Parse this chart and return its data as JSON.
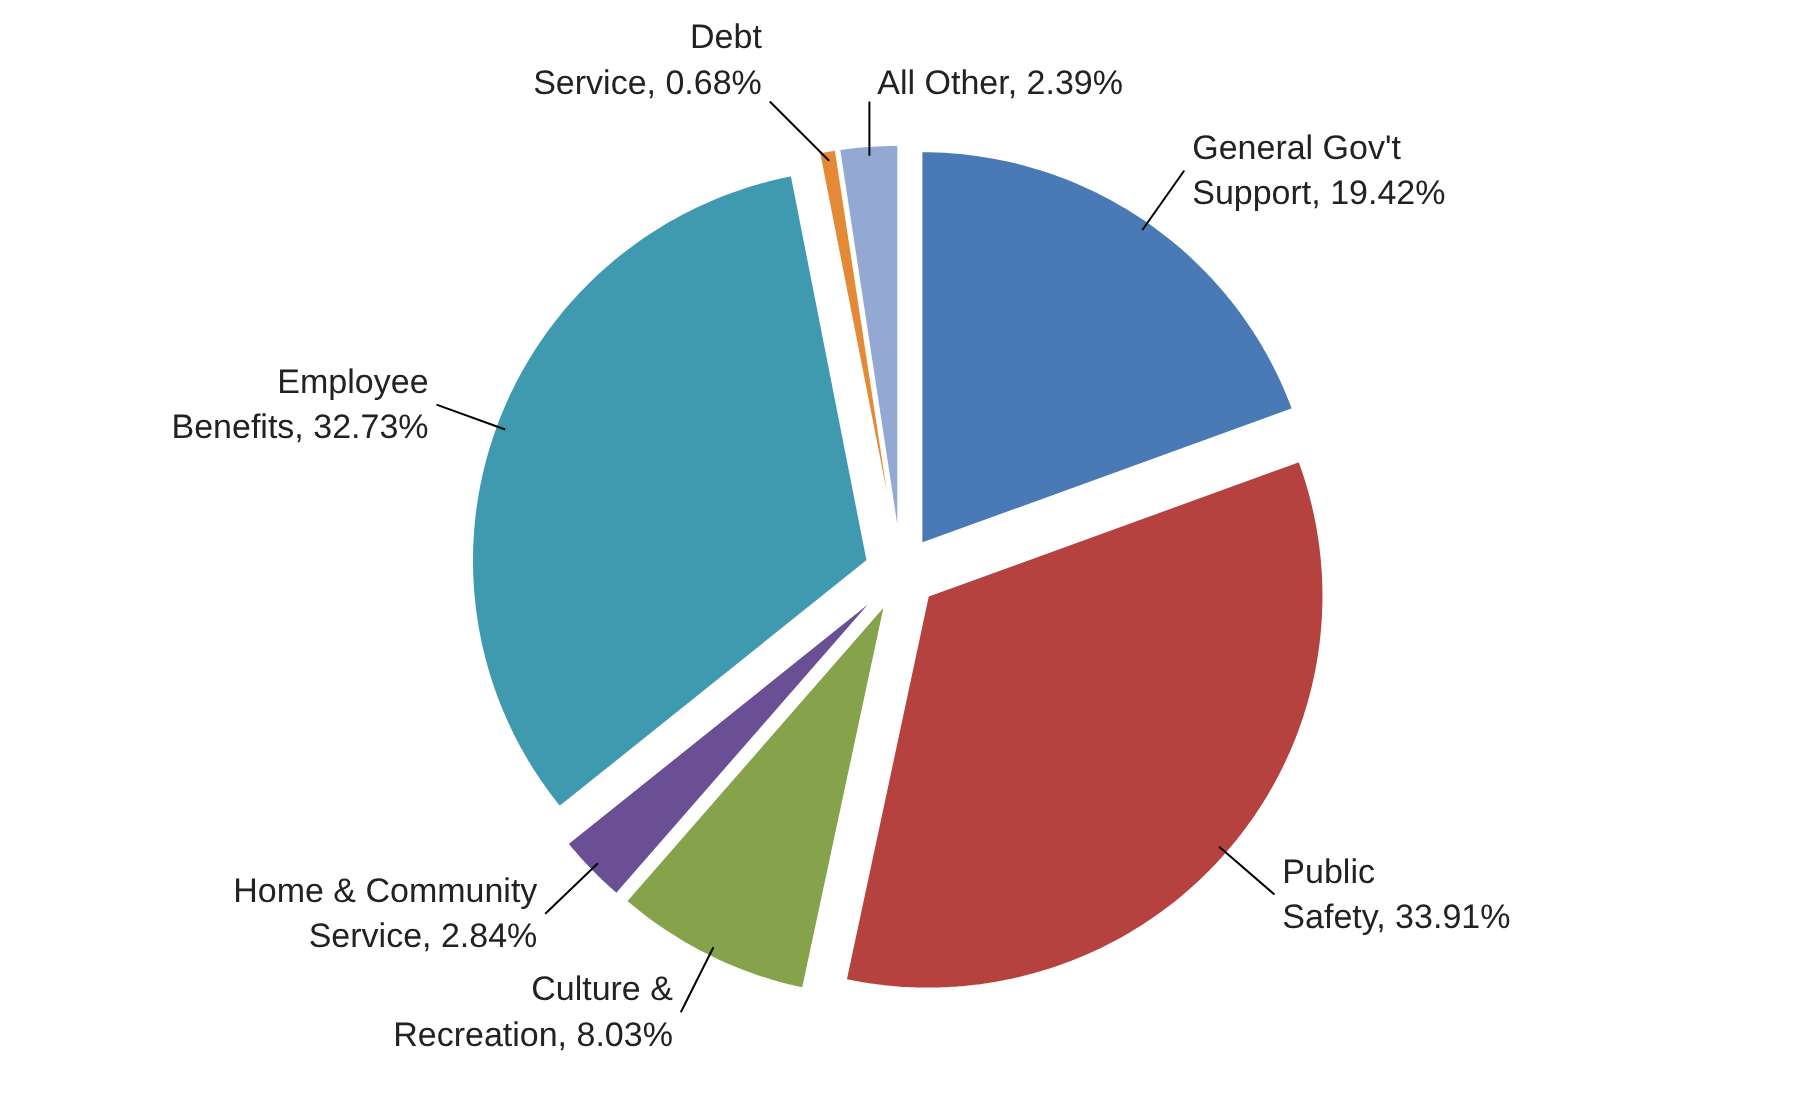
{
  "chart_data": {
    "type": "pie",
    "categories": [
      "General Gov't Support",
      "Public Safety",
      "Culture & Recreation",
      "Home & Community Service",
      "Employee Benefits",
      "Debt Service",
      "All Other"
    ],
    "values": [
      19.42,
      33.91,
      8.03,
      2.84,
      32.73,
      0.68,
      2.39
    ],
    "value_labels": [
      "19.42%",
      "33.91%",
      "8.03%",
      "2.84%",
      "32.73%",
      "0.68%",
      "2.39%"
    ],
    "colors": [
      "#4a7ab5",
      "#b5423f",
      "#86a24b",
      "#6b4f94",
      "#3f9ab0",
      "#e48935",
      "#93a9d4"
    ],
    "legend": false
  }
}
